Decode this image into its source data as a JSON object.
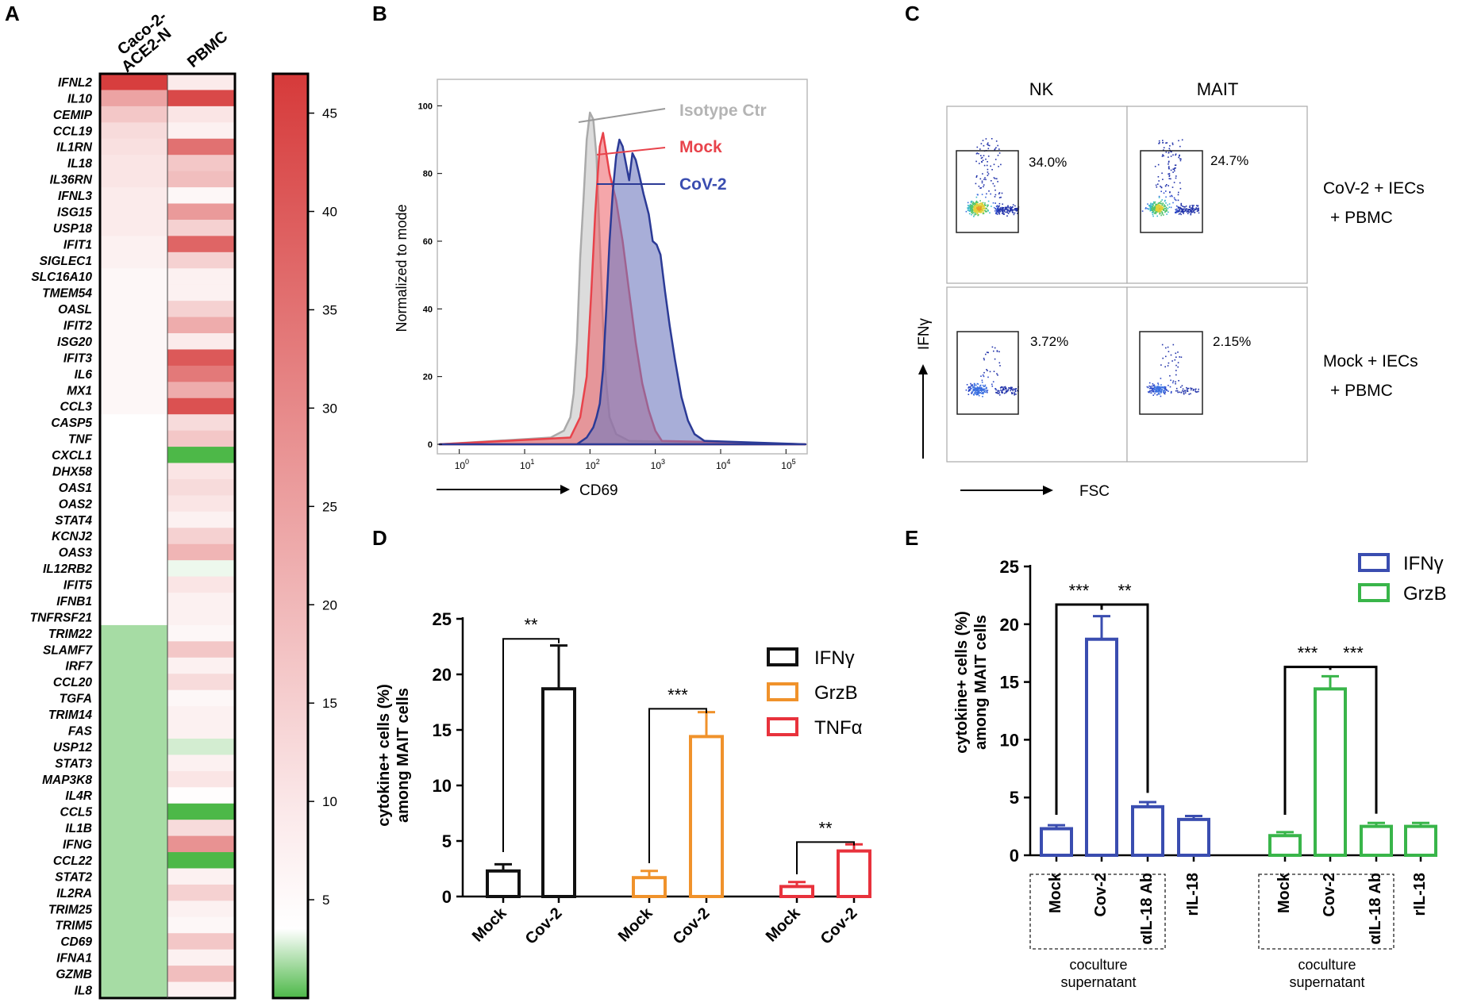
{
  "panels": {
    "A": "A",
    "B": "B",
    "C": "C",
    "D": "D",
    "E": "E"
  },
  "chart_data": [
    {
      "panel": "A",
      "type": "heatmap",
      "columns": [
        "Caco-2-ACE2-N",
        "PBMC"
      ],
      "column_lines": [
        [
          "Caco-2-",
          "ACE2-N"
        ],
        [
          "PBMC"
        ]
      ],
      "rows": [
        "IFNL2",
        "IL10",
        "CEMIP",
        "CCL19",
        "IL1RN",
        "IL18",
        "IL36RN",
        "IFNL3",
        "ISG15",
        "USP18",
        "IFIT1",
        "SIGLEC1",
        "SLC16A10",
        "TMEM54",
        "OASL",
        "IFIT2",
        "ISG20",
        "IFIT3",
        "IL6",
        "MX1",
        "CCL3",
        "CASP5",
        "TNF",
        "CXCL1",
        "DHX58",
        "OAS1",
        "OAS2",
        "STAT4",
        "KCNJ2",
        "OAS3",
        "IL12RB2",
        "IFIT5",
        "IFNB1",
        "TNFRSF21",
        "TRIM22",
        "SLAMF7",
        "IRF7",
        "CCL20",
        "TGFA",
        "TRIM14",
        "FAS",
        "USP12",
        "STAT3",
        "MAP3K8",
        "IL4R",
        "CCL5",
        "IL1B",
        "IFNG",
        "CCL22",
        "STAT2",
        "IL2RA",
        "TRIM25",
        "TRIM5",
        "CD69",
        "IFNA1",
        "GZMB",
        "IL8"
      ],
      "values": [
        [
          45,
          5
        ],
        [
          20,
          42
        ],
        [
          12,
          6
        ],
        [
          8,
          4
        ],
        [
          7,
          32
        ],
        [
          6,
          12
        ],
        [
          6,
          14
        ],
        [
          5,
          3
        ],
        [
          5,
          22
        ],
        [
          5,
          10
        ],
        [
          4,
          35
        ],
        [
          4,
          10
        ],
        [
          3,
          4
        ],
        [
          3,
          4
        ],
        [
          3,
          10
        ],
        [
          3,
          18
        ],
        [
          3,
          5
        ],
        [
          3,
          38
        ],
        [
          3,
          30
        ],
        [
          3,
          18
        ],
        [
          3,
          40
        ],
        [
          2,
          8
        ],
        [
          2,
          12
        ],
        [
          2,
          0
        ],
        [
          2,
          6
        ],
        [
          2,
          8
        ],
        [
          2,
          6
        ],
        [
          2,
          4
        ],
        [
          2,
          10
        ],
        [
          2,
          16
        ],
        [
          2,
          1.8
        ],
        [
          2,
          6
        ],
        [
          2,
          4
        ],
        [
          2,
          4
        ],
        [
          1,
          3
        ],
        [
          1,
          12
        ],
        [
          1,
          4
        ],
        [
          1,
          8
        ],
        [
          1,
          3
        ],
        [
          1,
          4
        ],
        [
          1,
          4
        ],
        [
          1,
          1.5
        ],
        [
          1,
          4
        ],
        [
          1,
          6
        ],
        [
          1,
          2.2
        ],
        [
          1,
          0
        ],
        [
          1,
          8
        ],
        [
          1,
          24
        ],
        [
          1,
          0
        ],
        [
          1,
          4
        ],
        [
          1,
          10
        ],
        [
          1,
          4
        ],
        [
          1,
          3
        ],
        [
          1,
          12
        ],
        [
          1,
          4
        ],
        [
          1,
          14
        ],
        [
          1,
          4
        ]
      ],
      "colorbar": {
        "ticks": [
          5,
          10,
          15,
          20,
          25,
          30,
          35,
          40,
          45
        ],
        "range": [
          0,
          47
        ],
        "colors": {
          "low": "#4db848",
          "mid": "#ffffff",
          "high": "#d63a3a"
        }
      }
    },
    {
      "panel": "B",
      "type": "line",
      "xlabel": "CD69",
      "ylabel": "Normalized to mode",
      "x_ticks": [
        {
          "base": "10",
          "exp": "0"
        },
        {
          "base": "10",
          "exp": "1"
        },
        {
          "base": "10",
          "exp": "2"
        },
        {
          "base": "10",
          "exp": "3"
        },
        {
          "base": "10",
          "exp": "4"
        },
        {
          "base": "10",
          "exp": "5"
        }
      ],
      "y_ticks": [
        "0",
        "20",
        "40",
        "60",
        "80",
        "100"
      ],
      "xlim_log10": [
        -0.3,
        5.3
      ],
      "ylim": [
        0,
        105
      ],
      "series": [
        {
          "name": "Isotype Ctr",
          "color": "#aaaaaa",
          "fill": "#dcdcdc",
          "points": [
            [
              -0.3,
              0
            ],
            [
              1.4,
              2
            ],
            [
              1.6,
              4
            ],
            [
              1.7,
              8
            ],
            [
              1.75,
              15
            ],
            [
              1.8,
              30
            ],
            [
              1.85,
              55
            ],
            [
              1.9,
              72
            ],
            [
              1.95,
              90
            ],
            [
              2.0,
              98
            ],
            [
              2.05,
              96
            ],
            [
              2.1,
              85
            ],
            [
              2.15,
              60
            ],
            [
              2.2,
              35
            ],
            [
              2.25,
              18
            ],
            [
              2.3,
              8
            ],
            [
              2.4,
              3
            ],
            [
              2.6,
              1
            ],
            [
              5.3,
              0
            ]
          ]
        },
        {
          "name": "Mock",
          "color": "#e8434b",
          "fill": "rgba(236,92,100,0.55)",
          "points": [
            [
              -0.3,
              0
            ],
            [
              1.7,
              2
            ],
            [
              1.85,
              8
            ],
            [
              1.95,
              20
            ],
            [
              2.02,
              45
            ],
            [
              2.08,
              68
            ],
            [
              2.12,
              80
            ],
            [
              2.15,
              88
            ],
            [
              2.2,
              92
            ],
            [
              2.25,
              86
            ],
            [
              2.3,
              80
            ],
            [
              2.4,
              72
            ],
            [
              2.5,
              60
            ],
            [
              2.6,
              45
            ],
            [
              2.7,
              30
            ],
            [
              2.8,
              18
            ],
            [
              2.9,
              10
            ],
            [
              3.0,
              4
            ],
            [
              3.1,
              1
            ],
            [
              5.3,
              0
            ]
          ]
        },
        {
          "name": "CoV-2",
          "color": "#2b3a96",
          "fill": "rgba(110,120,190,0.6)",
          "points": [
            [
              -0.3,
              0
            ],
            [
              1.8,
              0
            ],
            [
              1.95,
              2
            ],
            [
              2.05,
              5
            ],
            [
              2.1,
              8
            ],
            [
              2.15,
              12
            ],
            [
              2.2,
              22
            ],
            [
              2.25,
              40
            ],
            [
              2.3,
              60
            ],
            [
              2.35,
              75
            ],
            [
              2.4,
              85
            ],
            [
              2.45,
              90
            ],
            [
              2.5,
              88
            ],
            [
              2.55,
              83
            ],
            [
              2.6,
              78
            ],
            [
              2.65,
              86
            ],
            [
              2.7,
              84
            ],
            [
              2.75,
              80
            ],
            [
              2.82,
              74
            ],
            [
              2.9,
              68
            ],
            [
              2.96,
              60
            ],
            [
              3.02,
              59
            ],
            [
              3.08,
              56
            ],
            [
              3.15,
              45
            ],
            [
              3.22,
              35
            ],
            [
              3.3,
              25
            ],
            [
              3.4,
              14
            ],
            [
              3.5,
              7
            ],
            [
              3.6,
              3
            ],
            [
              3.75,
              1
            ],
            [
              5.3,
              0
            ]
          ]
        }
      ]
    },
    {
      "panel": "C",
      "type": "scatter",
      "columns": [
        "NK",
        "MAIT"
      ],
      "rows": [
        [
          "CoV-2 + IECs",
          "+ PBMC"
        ],
        [
          "Mock + IECs",
          "+ PBMC"
        ]
      ],
      "gate_percent": [
        [
          "34.0%",
          "24.7%"
        ],
        [
          "3.72%",
          "2.15%"
        ]
      ],
      "xlabel": "FSC",
      "ylabel": "IFNγ"
    },
    {
      "panel": "D",
      "type": "bar",
      "ylabel": [
        "cytokine+ cells (%)",
        "among MAIT cells"
      ],
      "y_ticks": [
        "0",
        "5",
        "10",
        "15",
        "20",
        "25"
      ],
      "ylim": [
        0,
        25
      ],
      "legend": [
        {
          "label": "IFNγ",
          "color": "#111111"
        },
        {
          "label": "GrzB",
          "color": "#f0922b"
        },
        {
          "label": "TNFα",
          "color": "#e8323c"
        }
      ],
      "groups": [
        {
          "name": "IFNγ",
          "color": "#111111",
          "categories": [
            "Mock",
            "Cov-2"
          ],
          "values": [
            2.3,
            18.7
          ],
          "errors": [
            0.6,
            3.9
          ],
          "sig": "**"
        },
        {
          "name": "GrzB",
          "color": "#f0922b",
          "categories": [
            "Mock",
            "Cov-2"
          ],
          "values": [
            1.7,
            14.4
          ],
          "errors": [
            0.6,
            2.2
          ],
          "sig": "***"
        },
        {
          "name": "TNFα",
          "color": "#e8323c",
          "categories": [
            "Mock",
            "Cov-2"
          ],
          "values": [
            0.9,
            4.1
          ],
          "errors": [
            0.4,
            0.6
          ],
          "sig": "**"
        }
      ]
    },
    {
      "panel": "E",
      "type": "bar",
      "ylabel": [
        "cytokine+ cells (%)",
        "among MAIT cells"
      ],
      "y_ticks": [
        "0",
        "5",
        "10",
        "15",
        "20",
        "25"
      ],
      "ylim": [
        0,
        25
      ],
      "legend": [
        {
          "label": "IFNγ",
          "color": "#3a4db0"
        },
        {
          "label": "GrzB",
          "color": "#39b54a"
        }
      ],
      "groups": [
        {
          "name": "IFNγ",
          "color": "#3a4db0",
          "categories": [
            "Mock",
            "Cov-2",
            "αIL-18 Ab",
            "rIL-18"
          ],
          "values": [
            2.3,
            18.7,
            4.2,
            3.1
          ],
          "errors": [
            0.3,
            2.0,
            0.4,
            0.3
          ],
          "sig": [
            "***",
            "**"
          ]
        },
        {
          "name": "GrzB",
          "color": "#39b54a",
          "categories": [
            "Mock",
            "Cov-2",
            "αIL-18 Ab",
            "rIL-18"
          ],
          "values": [
            1.7,
            14.4,
            2.5,
            2.5
          ],
          "errors": [
            0.3,
            1.1,
            0.3,
            0.3
          ],
          "sig": [
            "***",
            "***"
          ]
        }
      ],
      "box_label": [
        "coculture",
        "supernatant"
      ]
    }
  ]
}
